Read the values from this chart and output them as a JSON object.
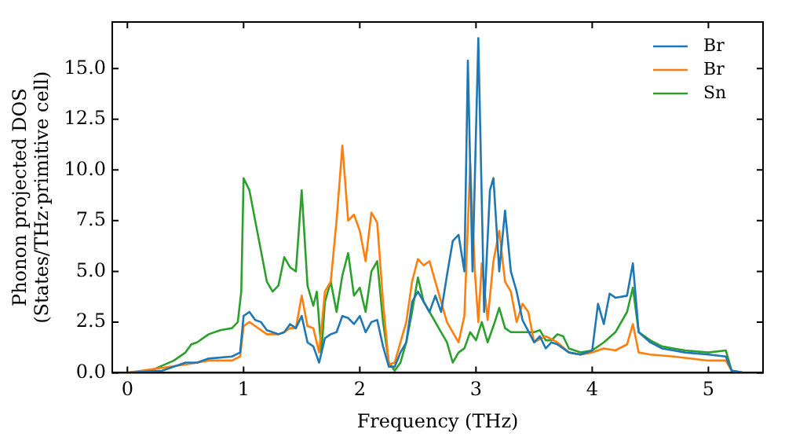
{
  "chart_data": {
    "type": "line",
    "xlabel": "Frequency (THz)",
    "ylabel": "Phonon projected DOS\n(States/THz·primitive cell)",
    "xlim": [
      -0.13,
      5.47
    ],
    "ylim": [
      0,
      17.3
    ],
    "xticks": [
      0,
      1,
      2,
      3,
      4,
      5
    ],
    "yticks": [
      {
        "value": 0,
        "label": "0.0"
      },
      {
        "value": 2.5,
        "label": "2.5"
      },
      {
        "value": 5,
        "label": "5.0"
      },
      {
        "value": 7.5,
        "label": "7.5"
      },
      {
        "value": 10,
        "label": "10.0"
      },
      {
        "value": 12.5,
        "label": "12.5"
      },
      {
        "value": 15,
        "label": "15.0"
      }
    ],
    "grid": false,
    "legend": "top right",
    "marker": "none",
    "line_style": "solid",
    "series": [
      {
        "name": "Br",
        "color": "#1f77b4",
        "x": [
          0,
          0.3,
          0.5,
          0.6,
          0.7,
          0.9,
          0.97,
          1.0,
          1.05,
          1.1,
          1.15,
          1.2,
          1.3,
          1.35,
          1.4,
          1.45,
          1.5,
          1.55,
          1.6,
          1.65,
          1.7,
          1.75,
          1.8,
          1.85,
          1.9,
          1.95,
          2.0,
          2.05,
          2.1,
          2.15,
          2.2,
          2.25,
          2.3,
          2.35,
          2.4,
          2.45,
          2.5,
          2.55,
          2.6,
          2.65,
          2.7,
          2.75,
          2.8,
          2.85,
          2.9,
          2.93,
          2.97,
          3.02,
          3.07,
          3.12,
          3.15,
          3.2,
          3.25,
          3.3,
          3.35,
          3.4,
          3.5,
          3.55,
          3.6,
          3.65,
          3.7,
          3.8,
          3.9,
          4.0,
          4.05,
          4.1,
          4.15,
          4.2,
          4.3,
          4.35,
          4.4,
          4.5,
          4.6,
          4.7,
          4.8,
          5.0,
          5.15,
          5.2,
          5.3
        ],
        "values": [
          0,
          0.1,
          0.5,
          0.5,
          0.7,
          0.8,
          1.0,
          2.8,
          3.0,
          2.6,
          2.5,
          2.1,
          1.9,
          2.0,
          2.4,
          2.2,
          2.8,
          1.5,
          1.3,
          0.5,
          1.7,
          1.9,
          2.0,
          2.8,
          2.7,
          2.4,
          2.8,
          2.0,
          2.5,
          2.6,
          1.3,
          0.3,
          0.3,
          1.0,
          1.5,
          3.5,
          4.0,
          3.5,
          3.0,
          3.8,
          3.0,
          4.8,
          6.5,
          6.8,
          5.0,
          15.4,
          5.0,
          16.5,
          3.0,
          9.0,
          9.6,
          5.0,
          8.0,
          5.0,
          4.0,
          2.6,
          1.5,
          1.8,
          1.2,
          1.5,
          1.4,
          1.0,
          0.9,
          1.1,
          3.4,
          2.4,
          3.9,
          3.7,
          3.8,
          5.4,
          2.0,
          1.5,
          1.2,
          1.1,
          1.0,
          0.9,
          0.8,
          0.1,
          0
        ]
      },
      {
        "name": "Br",
        "color": "#ff7f0e",
        "x": [
          0,
          0.5,
          0.7,
          0.9,
          0.97,
          1.0,
          1.05,
          1.1,
          1.2,
          1.3,
          1.35,
          1.4,
          1.45,
          1.5,
          1.55,
          1.6,
          1.65,
          1.7,
          1.75,
          1.8,
          1.85,
          1.9,
          1.95,
          2.0,
          2.05,
          2.1,
          2.15,
          2.2,
          2.25,
          2.3,
          2.35,
          2.4,
          2.45,
          2.5,
          2.55,
          2.6,
          2.65,
          2.7,
          2.75,
          2.8,
          2.85,
          2.9,
          2.95,
          2.99,
          3.02,
          3.05,
          3.1,
          3.15,
          3.2,
          3.25,
          3.3,
          3.35,
          3.4,
          3.45,
          3.5,
          3.6,
          3.7,
          3.8,
          3.9,
          4.0,
          4.1,
          4.2,
          4.3,
          4.35,
          4.4,
          4.5,
          4.7,
          5.0,
          5.15,
          5.2,
          5.3
        ],
        "values": [
          0,
          0.4,
          0.6,
          0.6,
          0.8,
          2.3,
          2.5,
          2.3,
          1.9,
          1.9,
          2.0,
          2.2,
          2.2,
          3.8,
          2.3,
          2.2,
          1.0,
          4.0,
          4.5,
          7.5,
          11.2,
          7.5,
          7.8,
          7.0,
          5.5,
          7.9,
          7.4,
          3.5,
          0.4,
          0.5,
          1.5,
          2.5,
          4.5,
          5.6,
          5.3,
          5.5,
          4.5,
          3.5,
          2.5,
          2.0,
          1.5,
          2.8,
          10.3,
          5.0,
          2.5,
          5.4,
          2.6,
          5.5,
          7.0,
          4.5,
          4.0,
          2.5,
          3.4,
          3.0,
          1.5,
          1.8,
          1.5,
          1.0,
          0.9,
          1.0,
          1.2,
          1.1,
          1.4,
          2.4,
          1.0,
          0.9,
          0.8,
          0.6,
          0.6,
          0.1,
          0
        ]
      },
      {
        "name": "Sn",
        "color": "#2ca02c",
        "x": [
          0,
          0.2,
          0.4,
          0.5,
          0.55,
          0.6,
          0.7,
          0.8,
          0.9,
          0.95,
          0.98,
          1.0,
          1.05,
          1.1,
          1.15,
          1.2,
          1.25,
          1.3,
          1.35,
          1.4,
          1.45,
          1.5,
          1.55,
          1.6,
          1.63,
          1.67,
          1.7,
          1.75,
          1.8,
          1.85,
          1.9,
          1.95,
          2.0,
          2.05,
          2.1,
          2.15,
          2.2,
          2.25,
          2.3,
          2.35,
          2.4,
          2.45,
          2.5,
          2.55,
          2.6,
          2.65,
          2.7,
          2.75,
          2.8,
          2.85,
          2.9,
          2.95,
          3.0,
          3.05,
          3.1,
          3.15,
          3.2,
          3.25,
          3.3,
          3.4,
          3.5,
          3.55,
          3.6,
          3.65,
          3.7,
          3.75,
          3.8,
          3.9,
          4.0,
          4.1,
          4.2,
          4.3,
          4.35,
          4.4,
          4.5,
          4.6,
          4.7,
          4.8,
          5.0,
          5.15,
          5.2,
          5.3
        ],
        "values": [
          0,
          0.1,
          0.6,
          1.0,
          1.4,
          1.5,
          1.9,
          2.1,
          2.2,
          2.5,
          4.0,
          9.6,
          9.0,
          7.5,
          6.0,
          4.5,
          4.0,
          4.3,
          5.7,
          5.2,
          5.0,
          9.0,
          4.3,
          3.3,
          4.0,
          1.0,
          3.5,
          4.5,
          3.0,
          4.8,
          5.9,
          3.8,
          4.2,
          3.0,
          5.0,
          5.5,
          2.5,
          0.5,
          0.1,
          0.5,
          1.5,
          3.0,
          4.7,
          3.5,
          3.0,
          2.5,
          2.0,
          1.5,
          0.5,
          1.0,
          1.2,
          2.0,
          1.6,
          2.5,
          1.5,
          2.3,
          3.2,
          2.2,
          2.0,
          2.0,
          2.0,
          2.1,
          1.6,
          1.6,
          1.9,
          1.8,
          1.2,
          1.0,
          1.1,
          1.5,
          2.0,
          3.0,
          4.2,
          2.0,
          1.6,
          1.3,
          1.2,
          1.1,
          1.0,
          1.1,
          0.1,
          0
        ]
      }
    ]
  }
}
